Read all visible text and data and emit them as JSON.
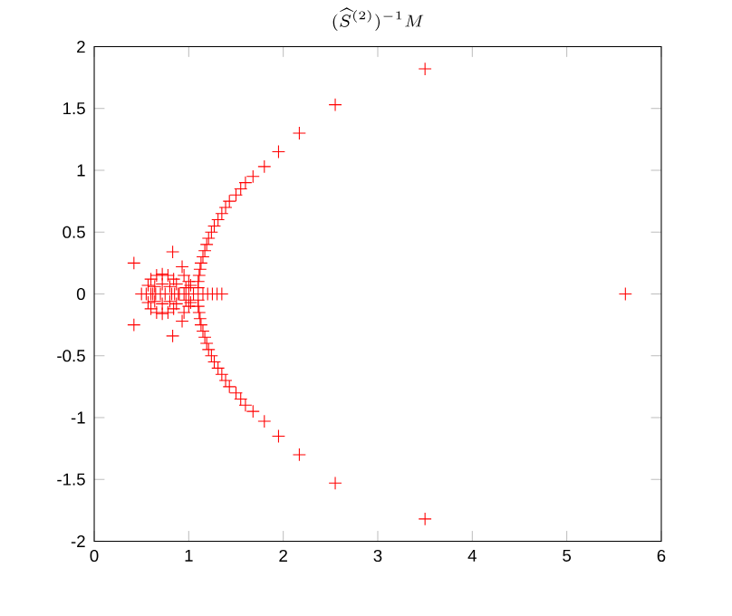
{
  "chart_data": {
    "type": "scatter",
    "title": "(\\widehat{S}^{(2)})^{-1} M",
    "marker": "cross",
    "grid": false,
    "xlim": [
      0,
      6
    ],
    "ylim": [
      -2,
      2
    ],
    "xticks": [
      0,
      1,
      2,
      3,
      4,
      5,
      6
    ],
    "yticks": [
      -2,
      -1.5,
      -1,
      -0.5,
      0,
      0.5,
      1,
      1.5,
      2
    ],
    "series": [
      {
        "color": "#ff0000",
        "x": [
          1.1,
          1.1,
          1.11,
          1.12,
          1.13,
          1.15,
          1.17,
          1.19,
          1.21,
          1.24,
          1.27,
          1.31,
          1.35,
          1.39,
          1.43,
          1.5,
          1.55,
          1.6,
          1.68,
          1.8,
          1.95,
          2.17,
          2.55,
          3.5,
          1.1,
          1.1,
          1.11,
          1.12,
          1.13,
          1.15,
          1.17,
          1.19,
          1.21,
          1.24,
          1.27,
          1.31,
          1.35,
          1.39,
          1.43,
          1.5,
          1.55,
          1.6,
          1.68,
          1.8,
          1.95,
          2.17,
          2.55,
          3.5,
          0.42,
          0.42,
          0.83,
          0.83,
          0.93,
          0.93,
          0.95,
          0.95,
          0.89,
          0.87,
          0.84,
          0.78,
          0.72,
          0.66,
          0.6,
          0.57,
          0.55,
          0.57,
          0.6,
          0.66,
          0.72,
          0.78,
          0.84,
          0.87,
          0.82,
          0.8,
          0.72,
          0.64,
          0.62,
          0.64,
          0.72,
          0.8,
          0.5,
          0.6,
          0.65,
          0.7,
          0.75,
          0.85,
          0.9,
          0.95,
          1.0,
          1.05,
          1.15,
          1.2,
          1.25,
          1.3,
          1.35,
          1.0,
          1.0,
          0.97,
          0.97,
          1.02,
          1.02,
          5.62
        ],
        "values": [
          0.05,
          0.1,
          0.15,
          0.2,
          0.25,
          0.3,
          0.35,
          0.4,
          0.45,
          0.5,
          0.55,
          0.6,
          0.65,
          0.7,
          0.75,
          0.8,
          0.85,
          0.9,
          0.95,
          1.03,
          1.15,
          1.3,
          1.53,
          1.82,
          -0.05,
          -0.1,
          -0.15,
          -0.2,
          -0.25,
          -0.3,
          -0.35,
          -0.4,
          -0.45,
          -0.5,
          -0.55,
          -0.6,
          -0.65,
          -0.7,
          -0.75,
          -0.8,
          -0.85,
          -0.9,
          -0.95,
          -1.03,
          -1.15,
          -1.3,
          -1.53,
          -1.82,
          0.25,
          -0.25,
          0.34,
          -0.34,
          0.22,
          -0.22,
          0.15,
          -0.15,
          0,
          0.08,
          0.12,
          0.15,
          0.16,
          0.15,
          0.12,
          0.07,
          0,
          -0.07,
          -0.12,
          -0.15,
          -0.16,
          -0.15,
          -0.12,
          -0.08,
          0,
          0.06,
          0.08,
          0.06,
          0,
          -0.06,
          -0.08,
          -0.06,
          0,
          0,
          0,
          0,
          0,
          0,
          0,
          0,
          0,
          0,
          0,
          0,
          0,
          0,
          0,
          0.1,
          -0.1,
          0.05,
          -0.05,
          0.07,
          -0.07,
          0
        ]
      }
    ]
  }
}
